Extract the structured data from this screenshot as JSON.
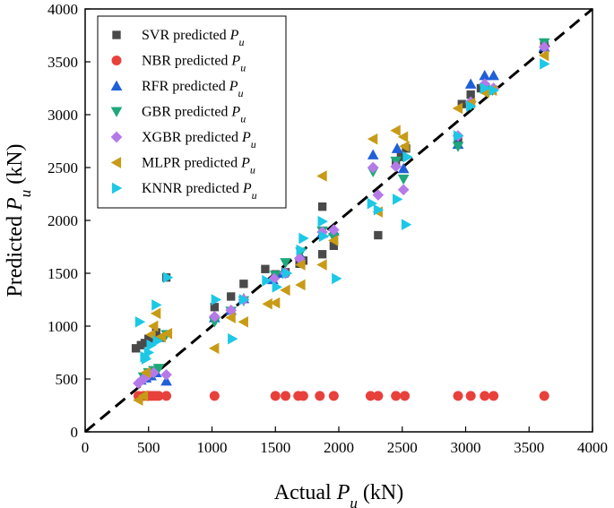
{
  "chart_data": {
    "type": "scatter",
    "xlabel": {
      "prefix": "Actual ",
      "var": "P",
      "sub": "u",
      "suffix": " (kN)"
    },
    "ylabel": {
      "prefix": "Predicted ",
      "var": "P",
      "sub": "u",
      "suffix": " (kN)"
    },
    "xlim": [
      0,
      4000
    ],
    "ylim": [
      0,
      4000
    ],
    "xticks": [
      0,
      500,
      1000,
      1500,
      2000,
      2500,
      3000,
      3500,
      4000
    ],
    "yticks": [
      0,
      500,
      1000,
      1500,
      2000,
      2500,
      3000,
      3500,
      4000
    ],
    "reference_line": {
      "style": "dashed",
      "color": "#000000",
      "from": [
        0,
        0
      ],
      "to": [
        4000,
        4000
      ]
    },
    "legend_position": "top-left",
    "series": [
      {
        "name": "SVR predicted",
        "var": "P",
        "sub": "u",
        "marker": "square",
        "color": "#4a4a4a",
        "points": [
          [
            400,
            790
          ],
          [
            440,
            820
          ],
          [
            470,
            840
          ],
          [
            500,
            880
          ],
          [
            540,
            900
          ],
          [
            560,
            940
          ],
          [
            600,
            890
          ],
          [
            640,
            1460
          ],
          [
            1020,
            1180
          ],
          [
            1150,
            1280
          ],
          [
            1250,
            1400
          ],
          [
            1420,
            1540
          ],
          [
            1500,
            1490
          ],
          [
            1580,
            1510
          ],
          [
            1690,
            1590
          ],
          [
            1720,
            1620
          ],
          [
            1870,
            2130
          ],
          [
            1870,
            1680
          ],
          [
            1960,
            1760
          ],
          [
            2310,
            1860
          ],
          [
            2450,
            2550
          ],
          [
            2490,
            2600
          ],
          [
            2530,
            2680
          ],
          [
            2940,
            2760
          ],
          [
            2970,
            3100
          ],
          [
            3040,
            3190
          ],
          [
            3120,
            3250
          ],
          [
            3210,
            3230
          ],
          [
            3620,
            3670
          ]
        ]
      },
      {
        "name": "NBR predicted",
        "var": "P",
        "sub": "u",
        "marker": "circle",
        "color": "#e8413c",
        "points": [
          [
            420,
            340
          ],
          [
            460,
            340
          ],
          [
            480,
            340
          ],
          [
            500,
            340
          ],
          [
            520,
            340
          ],
          [
            540,
            340
          ],
          [
            560,
            340
          ],
          [
            580,
            340
          ],
          [
            640,
            340
          ],
          [
            1020,
            340
          ],
          [
            1500,
            340
          ],
          [
            1580,
            340
          ],
          [
            1680,
            340
          ],
          [
            1720,
            340
          ],
          [
            1850,
            340
          ],
          [
            1960,
            340
          ],
          [
            2250,
            340
          ],
          [
            2310,
            340
          ],
          [
            2450,
            340
          ],
          [
            2520,
            340
          ],
          [
            2940,
            340
          ],
          [
            3040,
            340
          ],
          [
            3150,
            340
          ],
          [
            3220,
            340
          ],
          [
            3620,
            340
          ]
        ]
      },
      {
        "name": "RFR predicted",
        "var": "P",
        "sub": "u",
        "marker": "triangle-up",
        "color": "#1f5fd8",
        "points": [
          [
            440,
            490
          ],
          [
            480,
            510
          ],
          [
            520,
            530
          ],
          [
            560,
            560
          ],
          [
            640,
            480
          ],
          [
            1020,
            1080
          ],
          [
            1150,
            1150
          ],
          [
            1250,
            1260
          ],
          [
            1480,
            1440
          ],
          [
            1560,
            1500
          ],
          [
            1700,
            1660
          ],
          [
            1870,
            1880
          ],
          [
            1960,
            1900
          ],
          [
            2270,
            2620
          ],
          [
            2460,
            2680
          ],
          [
            2510,
            2490
          ],
          [
            2940,
            2720
          ],
          [
            3040,
            3290
          ],
          [
            3150,
            3370
          ],
          [
            3220,
            3370
          ],
          [
            3620,
            3640
          ]
        ]
      },
      {
        "name": "GBR predicted",
        "var": "P",
        "sub": "u",
        "marker": "triangle-down",
        "color": "#1ea87a",
        "points": [
          [
            460,
            520
          ],
          [
            500,
            560
          ],
          [
            540,
            580
          ],
          [
            580,
            600
          ],
          [
            640,
            920
          ],
          [
            1020,
            1040
          ],
          [
            1150,
            1140
          ],
          [
            1250,
            1240
          ],
          [
            1500,
            1480
          ],
          [
            1580,
            1600
          ],
          [
            1700,
            1700
          ],
          [
            1870,
            1900
          ],
          [
            1960,
            1840
          ],
          [
            2270,
            2460
          ],
          [
            2450,
            2560
          ],
          [
            2510,
            2390
          ],
          [
            2940,
            2700
          ],
          [
            3040,
            3090
          ],
          [
            3150,
            3240
          ],
          [
            3210,
            3230
          ],
          [
            3620,
            3680
          ]
        ]
      },
      {
        "name": "XGBR predicted",
        "var": "P",
        "sub": "u",
        "marker": "diamond",
        "color": "#b57ae8",
        "points": [
          [
            420,
            460
          ],
          [
            460,
            500
          ],
          [
            500,
            540
          ],
          [
            540,
            560
          ],
          [
            640,
            540
          ],
          [
            1020,
            1090
          ],
          [
            1150,
            1150
          ],
          [
            1250,
            1250
          ],
          [
            1490,
            1450
          ],
          [
            1580,
            1500
          ],
          [
            1690,
            1640
          ],
          [
            1870,
            1890
          ],
          [
            1960,
            1910
          ],
          [
            2270,
            2500
          ],
          [
            2310,
            2240
          ],
          [
            2450,
            2510
          ],
          [
            2510,
            2290
          ],
          [
            2940,
            2800
          ],
          [
            3040,
            3120
          ],
          [
            3150,
            3290
          ],
          [
            3220,
            3250
          ],
          [
            3620,
            3640
          ]
        ]
      },
      {
        "name": "MLPR predicted",
        "var": "P",
        "sub": "u",
        "marker": "triangle-left",
        "color": "#c89b17",
        "points": [
          [
            420,
            300
          ],
          [
            460,
            340
          ],
          [
            480,
            560
          ],
          [
            520,
            920
          ],
          [
            540,
            1000
          ],
          [
            560,
            1120
          ],
          [
            600,
            900
          ],
          [
            650,
            930
          ],
          [
            1020,
            790
          ],
          [
            1150,
            1080
          ],
          [
            1250,
            1040
          ],
          [
            1440,
            1210
          ],
          [
            1500,
            1220
          ],
          [
            1580,
            1340
          ],
          [
            1700,
            1390
          ],
          [
            1700,
            1580
          ],
          [
            1870,
            2420
          ],
          [
            1870,
            1580
          ],
          [
            1960,
            1810
          ],
          [
            2270,
            2770
          ],
          [
            2310,
            2080
          ],
          [
            2450,
            2850
          ],
          [
            2510,
            2790
          ],
          [
            2520,
            2700
          ],
          [
            2940,
            3060
          ],
          [
            3040,
            3110
          ],
          [
            3150,
            3210
          ],
          [
            3210,
            3230
          ],
          [
            3620,
            3560
          ]
        ]
      },
      {
        "name": "KNNR predicted",
        "var": "P",
        "sub": "u",
        "marker": "triangle-right",
        "color": "#1dc8e6",
        "points": [
          [
            430,
            1040
          ],
          [
            470,
            710
          ],
          [
            480,
            690
          ],
          [
            500,
            750
          ],
          [
            520,
            820
          ],
          [
            560,
            1200
          ],
          [
            570,
            860
          ],
          [
            650,
            1460
          ],
          [
            1030,
            1250
          ],
          [
            1160,
            880
          ],
          [
            1250,
            1250
          ],
          [
            1430,
            1430
          ],
          [
            1510,
            1370
          ],
          [
            1590,
            1500
          ],
          [
            1700,
            1720
          ],
          [
            1720,
            1830
          ],
          [
            1870,
            1990
          ],
          [
            1880,
            1850
          ],
          [
            1980,
            1450
          ],
          [
            2260,
            2160
          ],
          [
            2310,
            2100
          ],
          [
            2460,
            2200
          ],
          [
            2530,
            1960
          ],
          [
            2540,
            2600
          ],
          [
            2940,
            2800
          ],
          [
            3040,
            3080
          ],
          [
            3150,
            3250
          ],
          [
            3220,
            3230
          ],
          [
            3620,
            3480
          ]
        ]
      }
    ]
  }
}
